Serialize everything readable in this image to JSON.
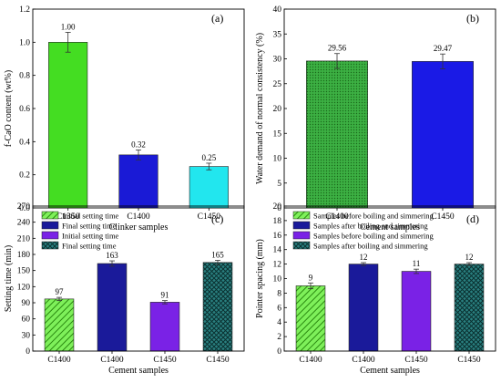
{
  "chart_data": [
    {
      "panel": "(a)",
      "type": "bar",
      "xlabel": "Clinker samples",
      "ylabel": "f-CaO content (wt%)",
      "categories": [
        "C1350",
        "C1400",
        "C1450"
      ],
      "values": [
        1.0,
        0.32,
        0.25
      ],
      "errors": [
        0.06,
        0.03,
        0.02
      ],
      "labels": [
        "1.00",
        "0.32",
        "0.25"
      ],
      "colors": [
        "#44dd22",
        "#1a1ad6",
        "#22e6ee"
      ],
      "ylim": [
        0,
        1.2
      ],
      "yticks": [
        0.0,
        0.2,
        0.4,
        0.6,
        0.8,
        1.0,
        1.2
      ],
      "ytick_labels": [
        "0.0",
        "0.2",
        "0.4",
        "0.6",
        "0.8",
        "1.0",
        "1.2"
      ],
      "grid": false
    },
    {
      "panel": "(b)",
      "type": "bar",
      "xlabel": "Cement samples",
      "ylabel": "Water demand of normal consistency (%)",
      "categories": [
        "C1400",
        "C1450"
      ],
      "values": [
        29.56,
        29.47
      ],
      "errors": [
        1.5,
        1.5
      ],
      "labels": [
        "29.56",
        "29.47"
      ],
      "colors": [
        "#3cb043",
        "#1a1ae6"
      ],
      "patterns": [
        "dots",
        "solid"
      ],
      "ylim": [
        0,
        40
      ],
      "yticks": [
        0,
        5,
        10,
        15,
        20,
        25,
        30,
        35,
        40
      ],
      "ytick_labels": [
        "0",
        "5",
        "10",
        "15",
        "20",
        "25",
        "30",
        "35",
        "40"
      ],
      "grid": false
    },
    {
      "panel": "(c)",
      "type": "bar",
      "xlabel": "Cement samples",
      "ylabel": "Setting time (min)",
      "categories": [
        "C1400",
        "C1400",
        "C1450",
        "C1450"
      ],
      "values": [
        97,
        163,
        91,
        165
      ],
      "errors": [
        3,
        5,
        3,
        4
      ],
      "labels": [
        "97",
        "163",
        "91",
        "165"
      ],
      "colors": [
        "#44dd22",
        "#1a1a9a",
        "#7a22e6",
        "#1a6a6a"
      ],
      "patterns": [
        "hatch",
        "solid",
        "solid",
        "cross"
      ],
      "legend": [
        "Initial setting time",
        "Final setting time",
        "Initial setting time",
        "Final setting time"
      ],
      "legend_position": "top-left",
      "ylim": [
        0,
        270
      ],
      "yticks": [
        0,
        30,
        60,
        90,
        120,
        150,
        180,
        210,
        240,
        270
      ],
      "ytick_labels": [
        "0",
        "30",
        "60",
        "90",
        "120",
        "150",
        "180",
        "210",
        "240",
        "270"
      ],
      "grid": false
    },
    {
      "panel": "(d)",
      "type": "bar",
      "xlabel": "Cement samples",
      "ylabel": "Pointer spacing (mm)",
      "categories": [
        "C1400",
        "C1400",
        "C1450",
        "C1450"
      ],
      "values": [
        9,
        12,
        11,
        12
      ],
      "errors": [
        0.4,
        0.2,
        0.3,
        0.2
      ],
      "labels": [
        "9",
        "12",
        "11",
        "12"
      ],
      "colors": [
        "#44dd22",
        "#1a1a9a",
        "#7a22e6",
        "#1a6a6a"
      ],
      "patterns": [
        "hatch",
        "solid",
        "solid",
        "cross"
      ],
      "legend": [
        "Samples before boiling and simmering",
        "Samples after boiling and simmering",
        "Samples  before boiling and simmering",
        "Samples  after boiling and simmering"
      ],
      "legend_position": "top-left",
      "ylim": [
        0,
        20
      ],
      "yticks": [
        0,
        2,
        4,
        6,
        8,
        10,
        12,
        14,
        16,
        18,
        20
      ],
      "ytick_labels": [
        "0",
        "2",
        "4",
        "6",
        "8",
        "10",
        "12",
        "14",
        "16",
        "18",
        "20"
      ],
      "grid": false
    }
  ]
}
